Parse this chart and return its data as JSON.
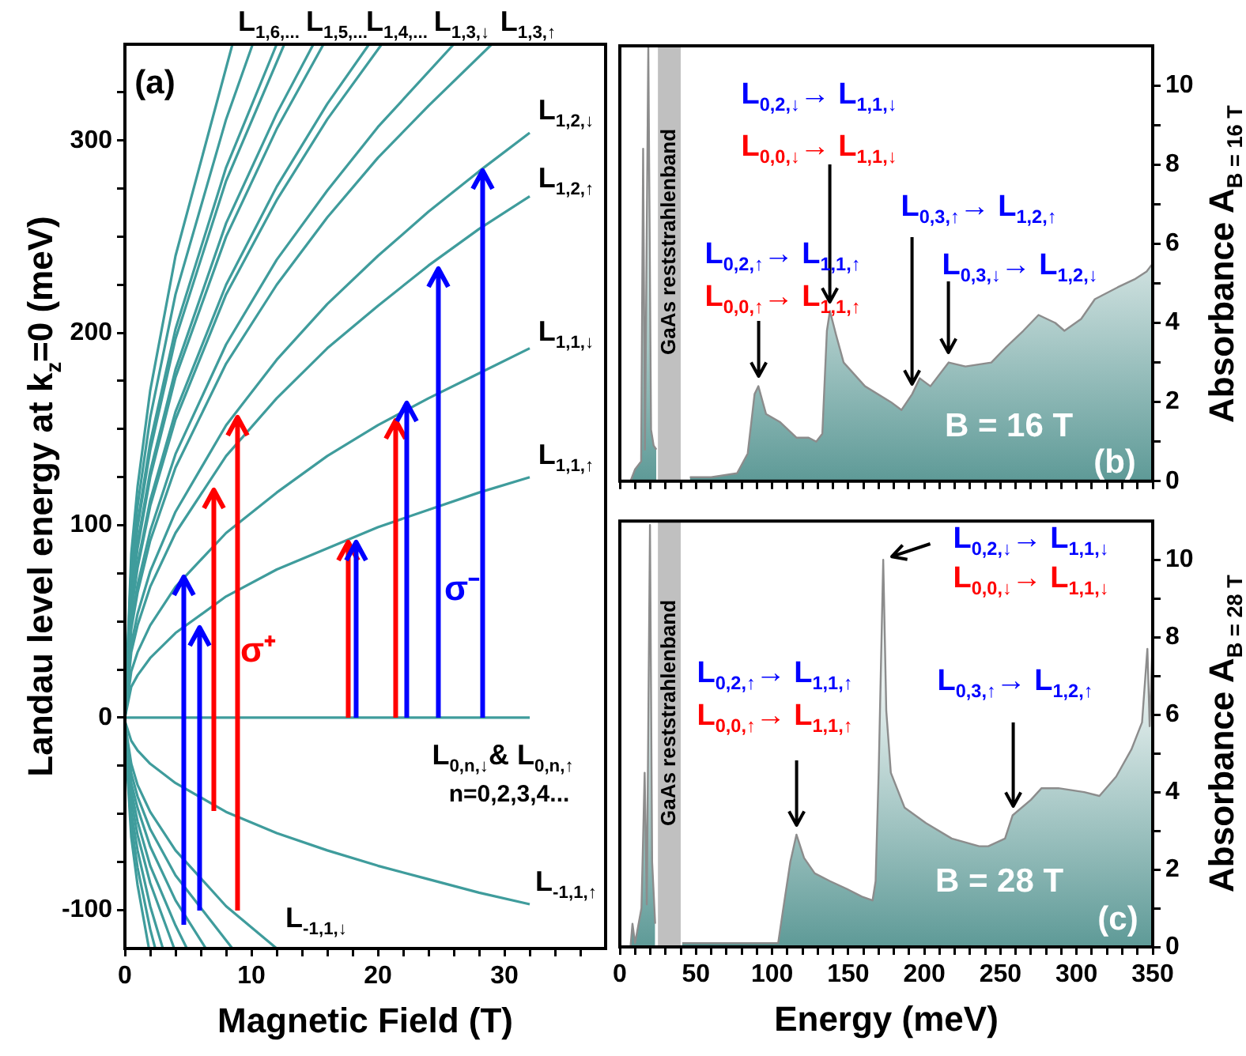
{
  "chart_data": [
    {
      "type": "line",
      "xlabel": "Magnetic Field (T)",
      "ylabel": "Landau level energy at k$_{z}$=0 (meV)",
      "xlim": [
        0,
        38
      ],
      "ylim": [
        -120,
        350
      ],
      "xticks": [
        0,
        {
          "value": 2,
          "label": null
        },
        {
          "value": 4,
          "label": null
        },
        {
          "value": 6,
          "label": null
        },
        {
          "value": 8,
          "label": null
        },
        10,
        {
          "value": 12,
          "label": null
        },
        {
          "value": 14,
          "label": null
        },
        {
          "value": 16,
          "label": null
        },
        {
          "value": 18,
          "label": null
        },
        20,
        {
          "value": 22,
          "label": null
        },
        {
          "value": 24,
          "label": null
        },
        {
          "value": 26,
          "label": null
        },
        {
          "value": 28,
          "label": null
        },
        30,
        {
          "value": 32,
          "label": null
        },
        {
          "value": 34,
          "label": null
        },
        {
          "value": 36,
          "label": null
        }
      ],
      "yticks": [
        -100,
        {
          "value": -75,
          "label": null
        },
        {
          "value": -50,
          "label": null
        },
        {
          "value": -25,
          "label": null
        },
        0,
        {
          "value": 25,
          "label": null
        },
        {
          "value": 50,
          "label": null
        },
        {
          "value": 75,
          "label": null
        },
        100,
        {
          "value": 125,
          "label": null
        },
        {
          "value": 150,
          "label": null
        },
        {
          "value": 175,
          "label": null
        },
        200,
        {
          "value": 225,
          "label": null
        },
        {
          "value": 250,
          "label": null
        },
        {
          "value": 275,
          "label": null
        },
        300,
        {
          "value": 325,
          "label": null
        }
      ],
      "series": [
        {
          "color": "#3f9c9c",
          "x": [
            0,
            32
          ],
          "values": [
            0,
            0
          ]
        },
        {
          "color": "#3f9c9c",
          "x": [
            0,
            0.5,
            1,
            2,
            4,
            8,
            12,
            16,
            20,
            24,
            28,
            32
          ],
          "values": [
            0,
            16,
            22,
            31,
            44,
            63,
            77,
            88,
            99,
            108,
            117,
            125
          ]
        },
        {
          "color": "#3f9c9c",
          "x": [
            0,
            0.5,
            1,
            2,
            4,
            8,
            12,
            16,
            20,
            24,
            28,
            32
          ],
          "values": [
            0,
            24,
            34,
            48,
            68,
            96,
            117,
            136,
            152,
            166,
            179,
            192
          ]
        },
        {
          "color": "#3f9c9c",
          "x": [
            0,
            0.5,
            1,
            2,
            4,
            8,
            12,
            16,
            20,
            24,
            28,
            32
          ],
          "values": [
            0,
            34,
            48,
            68,
            96,
            136,
            166,
            192,
            214,
            235,
            254,
            271
          ]
        },
        {
          "color": "#3f9c9c",
          "x": [
            0,
            0.5,
            1,
            2,
            4,
            8,
            12,
            16,
            20,
            24,
            28,
            32
          ],
          "values": [
            0,
            38,
            54,
            76,
            107,
            152,
            186,
            215,
            240,
            263,
            284,
            304
          ]
        },
        {
          "color": "#3f9c9c",
          "x": [
            0,
            0.5,
            1,
            2,
            4,
            8,
            12,
            16,
            20,
            24,
            29
          ],
          "values": [
            0,
            46,
            65,
            92,
            130,
            184,
            225,
            260,
            291,
            318,
            350
          ]
        },
        {
          "color": "#3f9c9c",
          "x": [
            0,
            0.5,
            1,
            2,
            4,
            8,
            12,
            16,
            20,
            26
          ],
          "values": [
            0,
            49,
            69,
            97,
            137,
            194,
            238,
            274,
            307,
            350
          ]
        },
        {
          "color": "#3f9c9c",
          "x": [
            0,
            0.5,
            1,
            2,
            4,
            8,
            12,
            16,
            20.3
          ],
          "values": [
            0,
            55,
            78,
            110,
            155,
            220,
            269,
            311,
            350
          ]
        },
        {
          "color": "#3f9c9c",
          "x": [
            0,
            0.5,
            1,
            2,
            4,
            8,
            12,
            16,
            19.3
          ],
          "values": [
            0,
            56,
            80,
            113,
            159,
            225,
            276,
            319,
            350
          ]
        },
        {
          "color": "#3f9c9c",
          "x": [
            0,
            0.5,
            1,
            2,
            4,
            8,
            12,
            15.7
          ],
          "values": [
            0,
            62,
            88,
            125,
            177,
            250,
            306,
            350
          ]
        },
        {
          "color": "#3f9c9c",
          "x": [
            0,
            0.5,
            1,
            2,
            4,
            8,
            12,
            14.9
          ],
          "values": [
            0,
            64,
            91,
            128,
            181,
            257,
            314,
            350
          ]
        },
        {
          "color": "#3f9c9c",
          "x": [
            0,
            0.5,
            1,
            2,
            4,
            8,
            12.6
          ],
          "values": [
            0,
            70,
            99,
            139,
            197,
            279,
            350
          ]
        },
        {
          "color": "#3f9c9c",
          "x": [
            0,
            0.5,
            1,
            2,
            4,
            8,
            12
          ],
          "values": [
            0,
            71,
            101,
            143,
            202,
            286,
            350
          ]
        },
        {
          "color": "#3f9c9c",
          "x": [
            0,
            0.5,
            1,
            2,
            4,
            8,
            10.1
          ],
          "values": [
            0,
            78,
            110,
            156,
            220,
            311,
            350
          ]
        },
        {
          "color": "#3f9c9c",
          "x": [
            0,
            0.5,
            1,
            2,
            4,
            8.5
          ],
          "values": [
            0,
            85,
            120,
            170,
            240,
            350
          ]
        },
        {
          "color": "#3f9c9c",
          "x": [
            0.01,
            0.5,
            1,
            2,
            4,
            8,
            12,
            16,
            20,
            24,
            28,
            32
          ],
          "values": [
            -2,
            -12,
            -17,
            -24,
            -34,
            -49,
            -60,
            -69,
            -77,
            -84,
            -91,
            -97
          ]
        },
        {
          "color": "#3f9c9c",
          "x": [
            0.01,
            0.5,
            1,
            2,
            4,
            8,
            12
          ],
          "values": [
            -3,
            -24,
            -35,
            -49,
            -69,
            -98,
            -120
          ]
        },
        {
          "color": "#3f9c9c",
          "x": [
            0.01,
            0.5,
            1,
            2,
            4,
            8.5
          ],
          "values": [
            -4,
            -29,
            -41,
            -58,
            -82,
            -120
          ]
        },
        {
          "color": "#3f9c9c",
          "x": [
            0.01,
            0.5,
            1,
            2,
            4,
            6.4
          ],
          "values": [
            -5,
            -34,
            -47,
            -67,
            -95,
            -120
          ]
        },
        {
          "color": "#3f9c9c",
          "x": [
            0.01,
            0.5,
            1,
            2,
            4,
            4.9
          ],
          "values": [
            -5,
            -38,
            -54,
            -77,
            -108,
            -120
          ]
        },
        {
          "color": "#3f9c9c",
          "x": [
            0.01,
            0.5,
            1,
            2,
            3.9
          ],
          "values": [
            -6,
            -43,
            -61,
            -86,
            -120
          ]
        },
        {
          "color": "#3f9c9c",
          "x": [
            0.01,
            0.5,
            1,
            2,
            3
          ],
          "values": [
            -7,
            -49,
            -69,
            -98,
            -120
          ]
        },
        {
          "color": "#3f9c9c",
          "x": [
            0.01,
            0.5,
            1,
            2,
            2.4
          ],
          "values": [
            -8,
            -55,
            -78,
            -110,
            -120
          ]
        },
        {
          "color": "#3f9c9c",
          "x": [
            0.01,
            0.5,
            1,
            1.9
          ],
          "values": [
            -9,
            -62,
            -87,
            -120
          ]
        }
      ],
      "annotations": [
        "(a)",
        "L$_{1,6,...}$",
        "L$_{1,5,...}$",
        "L$_{1,4,...}$",
        "L$_{1,3,↓}$",
        "L$_{1,3,↑}$",
        "L$_{1,2,↓}$",
        "L$_{1,2,↑}$",
        "L$_{1,1,↓}$",
        "L$_{1,1,↑}$",
        "L$_{0,n,↓}$& L$_{0,n,↑}$",
        "n=0,2,3,4...",
        "L$_{-1,1,↑}$",
        "L$_{-1,1,↓}$",
        "σ⁺",
        "σ⁻"
      ]
    },
    {
      "type": "area",
      "ylabel": "Absorbance A$_{B = 16 T}$",
      "xlim": [
        0,
        350
      ],
      "ylim": [
        0,
        11
      ],
      "tick_labels": "y",
      "xticks": [
        0,
        {
          "value": 10,
          "label": null
        },
        {
          "value": 20,
          "label": null
        },
        {
          "value": 30,
          "label": null
        },
        {
          "value": 40,
          "label": null
        },
        50,
        {
          "value": 60,
          "label": null
        },
        {
          "value": 70,
          "label": null
        },
        {
          "value": 80,
          "label": null
        },
        {
          "value": 90,
          "label": null
        },
        100,
        {
          "value": 110,
          "label": null
        },
        {
          "value": 120,
          "label": null
        },
        {
          "value": 130,
          "label": null
        },
        {
          "value": 140,
          "label": null
        },
        150,
        {
          "value": 160,
          "label": null
        },
        {
          "value": 170,
          "label": null
        },
        {
          "value": 180,
          "label": null
        },
        {
          "value": 190,
          "label": null
        },
        200,
        {
          "value": 210,
          "label": null
        },
        {
          "value": 220,
          "label": null
        },
        {
          "value": 230,
          "label": null
        },
        {
          "value": 240,
          "label": null
        },
        250,
        {
          "value": 260,
          "label": null
        },
        {
          "value": 270,
          "label": null
        },
        {
          "value": 280,
          "label": null
        },
        {
          "value": 290,
          "label": null
        },
        300,
        {
          "value": 310,
          "label": null
        },
        {
          "value": 320,
          "label": null
        },
        {
          "value": 330,
          "label": null
        },
        {
          "value": 340,
          "label": null
        },
        350
      ],
      "yticks": [
        0,
        {
          "value": 1,
          "label": null
        },
        2,
        {
          "value": 3,
          "label": null
        },
        4,
        {
          "value": 5,
          "label": null
        },
        6,
        {
          "value": 7,
          "label": null
        },
        8,
        {
          "value": 9,
          "label": null
        },
        10
      ],
      "series": [
        {
          "color": "#5e9a97",
          "x": [
            7,
            10,
            14,
            15.3,
            16.5,
            18.7,
            20.5,
            22.2,
            24,
            32,
            46,
            60,
            77,
            84,
            88.5,
            91,
            96,
            105,
            116,
            124,
            129,
            133,
            136,
            138,
            142,
            147,
            161,
            178,
            185,
            192,
            197,
            204,
            216,
            227,
            244,
            254,
            265,
            275,
            286,
            292,
            303,
            312,
            317,
            327,
            338,
            346,
            350
          ],
          "values": [
            0,
            0.3,
            0.5,
            8.4,
            0.8,
            11,
            1.3,
            0.9,
            0.8,
            null,
            0.1,
            0.1,
            0.2,
            0.7,
            2.2,
            2.4,
            1.7,
            1.5,
            1.1,
            1.1,
            1.0,
            1.2,
            3.8,
            4.3,
            3.7,
            3.0,
            2.4,
            2.0,
            1.8,
            2.2,
            2.6,
            2.4,
            3.0,
            2.9,
            3.0,
            3.4,
            3.8,
            4.2,
            4.0,
            3.8,
            4.1,
            4.6,
            4.7,
            4.9,
            5.1,
            5.3,
            5.5
          ]
        }
      ],
      "bands": [
        {
          "axis": "x",
          "from": 25,
          "to": 40,
          "label": "GaAs reststrahlenband",
          "color": "#c0c0c0"
        }
      ],
      "annotations": [
        "B = 16 T",
        "(b)",
        "L$_{0,2,↓}$→ L$_{1,1,↓}$",
        {
          "text": "L$_{0,0,↓}$→ L$_{1,1,↓}$",
          "x": 138,
          "y": 4.3
        },
        "L$_{0,2,↑}$→ L$_{1,1,↑}$",
        {
          "text": "L$_{0,0,↑}$→ L$_{1,1,↑}$",
          "x": 91,
          "y": 2.4
        },
        {
          "text": "L$_{0,3,↑}$→ L$_{1,2,↑}$",
          "x": 192,
          "y": 2.2
        },
        {
          "text": "L$_{0,3,↓}$→ L$_{1,2,↓}$",
          "x": 216,
          "y": 3.0
        }
      ]
    },
    {
      "type": "area",
      "xlabel": "Energy (meV)",
      "ylabel": "Absorbance A$_{B = 28 T}$",
      "xlim": [
        0,
        350
      ],
      "ylim": [
        0,
        11
      ],
      "xticks": [
        0,
        {
          "value": 10,
          "label": null
        },
        {
          "value": 20,
          "label": null
        },
        {
          "value": 30,
          "label": null
        },
        {
          "value": 40,
          "label": null
        },
        50,
        {
          "value": 60,
          "label": null
        },
        {
          "value": 70,
          "label": null
        },
        {
          "value": 80,
          "label": null
        },
        {
          "value": 90,
          "label": null
        },
        100,
        {
          "value": 110,
          "label": null
        },
        {
          "value": 120,
          "label": null
        },
        {
          "value": 130,
          "label": null
        },
        {
          "value": 140,
          "label": null
        },
        150,
        {
          "value": 160,
          "label": null
        },
        {
          "value": 170,
          "label": null
        },
        {
          "value": 180,
          "label": null
        },
        {
          "value": 190,
          "label": null
        },
        200,
        {
          "value": 210,
          "label": null
        },
        {
          "value": 220,
          "label": null
        },
        {
          "value": 230,
          "label": null
        },
        {
          "value": 240,
          "label": null
        },
        250,
        {
          "value": 260,
          "label": null
        },
        {
          "value": 270,
          "label": null
        },
        {
          "value": 280,
          "label": null
        },
        {
          "value": 290,
          "label": null
        },
        300,
        {
          "value": 310,
          "label": null
        },
        {
          "value": 320,
          "label": null
        },
        {
          "value": 330,
          "label": null
        },
        {
          "value": 340,
          "label": null
        },
        350
      ],
      "yticks": [
        0,
        {
          "value": 1,
          "label": null
        },
        2,
        {
          "value": 3,
          "label": null
        },
        4,
        {
          "value": 5,
          "label": null
        },
        6,
        {
          "value": 7,
          "label": null
        },
        8,
        {
          "value": 9,
          "label": null
        },
        10
      ],
      "series": [
        {
          "color": "#5e9a97",
          "x": [
            7,
            8.3,
            10,
            14.2,
            16.3,
            17.7,
            19.8,
            21.2,
            23.2,
            32,
            41,
            59,
            76,
            97,
            104,
            107,
            112,
            116,
            121,
            128,
            138,
            149,
            159,
            166,
            168,
            170,
            173,
            175,
            178,
            187,
            201,
            218,
            236,
            242,
            253,
            258,
            270,
            277,
            288,
            305,
            315,
            326,
            336,
            343,
            346.5,
            348,
            350
          ],
          "values": [
            0,
            0.6,
            0.1,
            1.0,
            4.5,
            1.1,
            10.9,
            2.2,
            0.6,
            null,
            0.1,
            0.1,
            0.1,
            0.1,
            0.1,
            0.9,
            2.2,
            2.9,
            2.3,
            1.9,
            1.7,
            1.5,
            1.3,
            1.2,
            1.7,
            4.5,
            10.0,
            6.1,
            4.5,
            3.6,
            3.2,
            2.8,
            2.6,
            2.6,
            2.8,
            3.4,
            3.8,
            4.1,
            4.1,
            4.0,
            3.9,
            4.4,
            5.1,
            5.8,
            7.7,
            5.7,
            8.0
          ]
        }
      ],
      "bands": [
        {
          "axis": "x",
          "from": 25,
          "to": 40,
          "label": "GaAs reststrahlenband",
          "color": "#c0c0c0"
        }
      ],
      "annotations": [
        "B = 28 T",
        "(c)",
        {
          "text": "L$_{0,2,↓}$→ L$_{1,1,↓}$",
          "x": 173,
          "y": 10.0
        },
        "L$_{0,0,↓}$→ L$_{1,1,↓}$",
        "L$_{0,2,↑}$→ L$_{1,1,↑}$",
        {
          "text": "L$_{0,0,↑}$→ L$_{1,1,↑}$",
          "x": 116,
          "y": 2.9
        },
        {
          "text": "L$_{0,3,↑}$→ L$_{1,2,↑}$",
          "x": 258,
          "y": 3.4
        }
      ]
    }
  ]
}
